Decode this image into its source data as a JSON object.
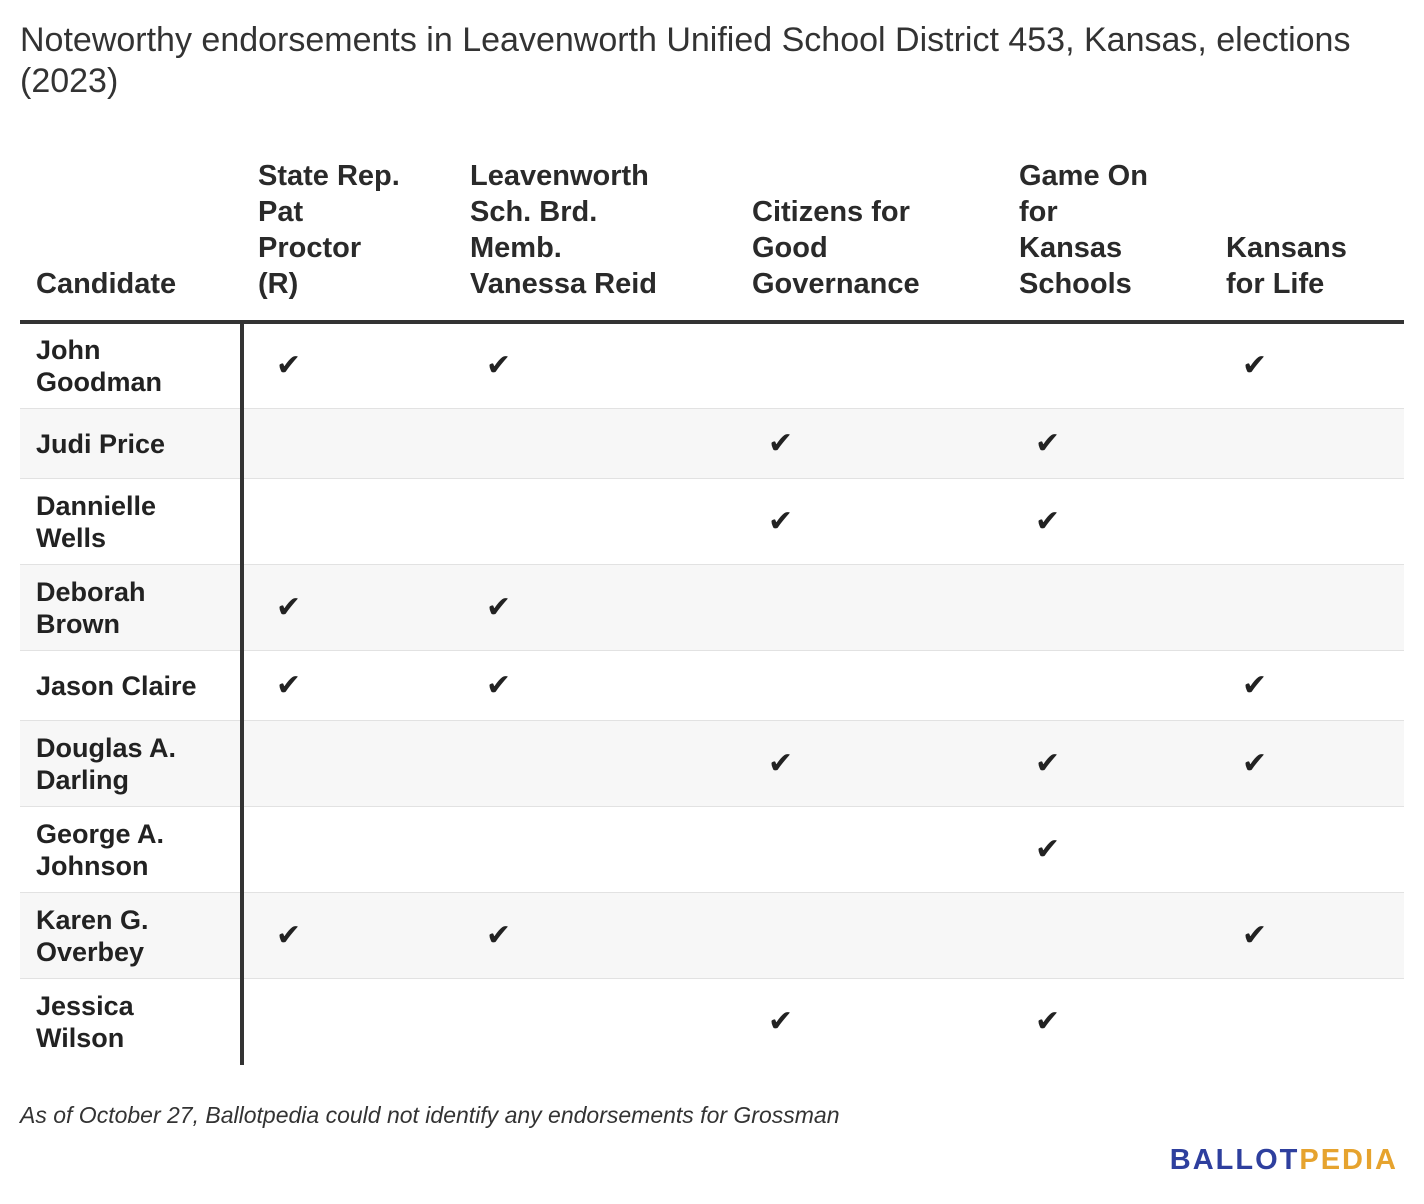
{
  "title": "Noteworthy endorsements in Leavenworth Unified School District 453, Kansas, elections (2023)",
  "note": "As of October 27, Ballotpedia could not identify any endorsements for Grossman",
  "logo": {
    "part1": "BALLOT",
    "part2": "PEDIA"
  },
  "check_symbol": "✔",
  "chart_data": {
    "type": "table",
    "columns": [
      "Candidate",
      "State Rep.\nPat\nProctor\n(R)",
      "Leavenworth\nSch. Brd.\nMemb.\nVanessa Reid",
      "Citizens for\nGood\nGovernance",
      "Game On\nfor\nKansas\nSchools",
      "Kansans\nfor Life"
    ],
    "rows": [
      {
        "candidate": " John\nGoodman",
        "endorsements": [
          true,
          true,
          false,
          false,
          true
        ]
      },
      {
        "candidate": " Judi Price",
        "endorsements": [
          false,
          false,
          true,
          true,
          false
        ]
      },
      {
        "candidate": " Dannielle\nWells",
        "endorsements": [
          false,
          false,
          true,
          true,
          false
        ]
      },
      {
        "candidate": " Deborah\nBrown",
        "endorsements": [
          true,
          true,
          false,
          false,
          false
        ]
      },
      {
        "candidate": " Jason Claire",
        "endorsements": [
          true,
          true,
          false,
          false,
          true
        ]
      },
      {
        "candidate": " Douglas A.\nDarling",
        "endorsements": [
          false,
          false,
          true,
          true,
          true
        ]
      },
      {
        "candidate": " George A.\nJohnson",
        "endorsements": [
          false,
          false,
          false,
          true,
          false
        ]
      },
      {
        "candidate": " Karen G.\nOverbey",
        "endorsements": [
          true,
          true,
          false,
          false,
          true
        ]
      },
      {
        "candidate": " Jessica\nWilson",
        "endorsements": [
          false,
          false,
          true,
          true,
          false
        ]
      }
    ]
  }
}
